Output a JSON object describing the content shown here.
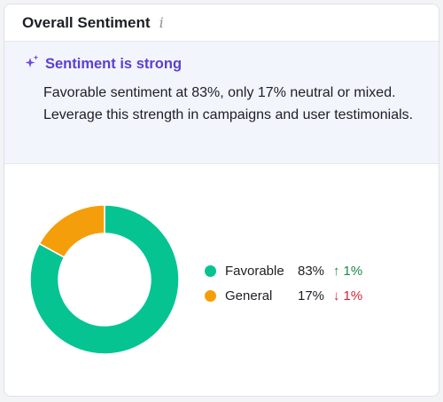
{
  "header": {
    "title": "Overall Sentiment",
    "info_glyph": "i"
  },
  "insight": {
    "icon": "sparkle-icon",
    "title": "Sentiment is strong",
    "body": "Favorable sentiment at 83%, only 17% neutral or mixed. Leverage this strength in campaigns and user testimonials.",
    "title_color": "#5a3fd6"
  },
  "legend": {
    "items": [
      {
        "label": "Favorable",
        "percent": "83%",
        "change": "1%",
        "direction": "up",
        "color": "#05c492"
      },
      {
        "label": "General",
        "percent": "17%",
        "change": "1%",
        "direction": "down",
        "color": "#f59e0b"
      }
    ]
  },
  "chart_data": {
    "type": "pie",
    "variant": "donut",
    "categories": [
      "Favorable",
      "General"
    ],
    "values": [
      83,
      17
    ],
    "colors": [
      "#05c492",
      "#f59e0b"
    ],
    "changes": [
      {
        "category": "Favorable",
        "value": 1,
        "direction": "up"
      },
      {
        "category": "General",
        "value": 1,
        "direction": "down"
      }
    ],
    "legend": "right"
  }
}
